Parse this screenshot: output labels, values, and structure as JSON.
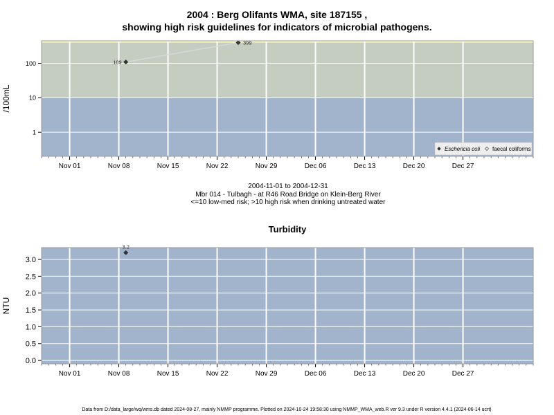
{
  "header": {
    "title_line1": "2004 : Berg Olifants WMA, site 187155 ,",
    "title_line2": "showing high risk guidelines for indicators of microbial pathogens."
  },
  "caption": {
    "line1": "2004-11-01 to 2004-12-31",
    "line2": "Mbr 014 - Tulbagh - at R46 Road Bridge on Klein-Berg River",
    "line3": "<=10 low-med risk; >10 high risk when drinking untreated water"
  },
  "turbidity_title": "Turbidity",
  "footer": "Data from D:/data_large/wq/wms.db dated 2024-08-27, mainly NMMP programme. Plotted on 2024-10-24 19:58:30 using NMMP_WMA_web.R ver 9.3 under R version 4.4.1 (2024-06-14 ucrt)",
  "colors": {
    "band_low": "#a2b4cc",
    "band_high": "#c5cdc0",
    "band_top": "#fbf5c5",
    "grid": "#ffffff",
    "point": "#333333",
    "connector": "#d8d8d8"
  },
  "chart_data": [
    {
      "type": "scatter",
      "ylabel": "/100mL",
      "yscale": "log",
      "ylim": [
        0.2,
        450
      ],
      "yticks": [
        1,
        10,
        100
      ],
      "ytick_labels": [
        "1",
        "10",
        "100"
      ],
      "xlim": [
        "2004-10-28",
        "2005-01-06"
      ],
      "xticks": [
        "2004-11-01",
        "2004-11-08",
        "2004-11-15",
        "2004-11-22",
        "2004-11-29",
        "2004-12-06",
        "2004-12-13",
        "2004-12-20",
        "2004-12-27"
      ],
      "xtick_labels": [
        "Nov 01",
        "Nov 08",
        "Nov 15",
        "Nov 22",
        "Nov 29",
        "Dec 06",
        "Dec 13",
        "Dec 20",
        "Dec 27"
      ],
      "bands": [
        {
          "from": 0.2,
          "to": 10,
          "color": "#a2b4cc"
        },
        {
          "from": 10,
          "to": 400,
          "color": "#c5cdc0"
        },
        {
          "from": 400,
          "to": 450,
          "color": "#fbf5c5"
        }
      ],
      "grid": true,
      "legend_position": "bottom-right",
      "series": [
        {
          "name": "Eschericia coli",
          "marker": "filled-diamond",
          "points": [
            {
              "x": "2004-11-09",
              "y": 109,
              "label": "109"
            },
            {
              "x": "2004-11-25",
              "y": 399,
              "label": "399"
            }
          ]
        },
        {
          "name": "faecal coliforms",
          "marker": "open-diamond",
          "points": []
        }
      ]
    },
    {
      "type": "scatter",
      "title": "Turbidity",
      "ylabel": "NTU",
      "ylim": [
        -0.1,
        3.35
      ],
      "yticks": [
        0.0,
        0.5,
        1.0,
        1.5,
        2.0,
        2.5,
        3.0
      ],
      "ytick_labels": [
        "0.0",
        "0.5",
        "1.0",
        "1.5",
        "2.0",
        "2.5",
        "3.0"
      ],
      "xlim": [
        "2004-10-28",
        "2005-01-06"
      ],
      "xticks": [
        "2004-11-01",
        "2004-11-08",
        "2004-11-15",
        "2004-11-22",
        "2004-11-29",
        "2004-12-06",
        "2004-12-13",
        "2004-12-20",
        "2004-12-27"
      ],
      "xtick_labels": [
        "Nov 01",
        "Nov 08",
        "Nov 15",
        "Nov 22",
        "Nov 29",
        "Dec 06",
        "Dec 13",
        "Dec 20",
        "Dec 27"
      ],
      "grid": true,
      "series": [
        {
          "name": "Turbidity",
          "marker": "filled-diamond",
          "points": [
            {
              "x": "2004-11-09",
              "y": 3.2,
              "label": "3.2"
            }
          ]
        }
      ]
    }
  ]
}
